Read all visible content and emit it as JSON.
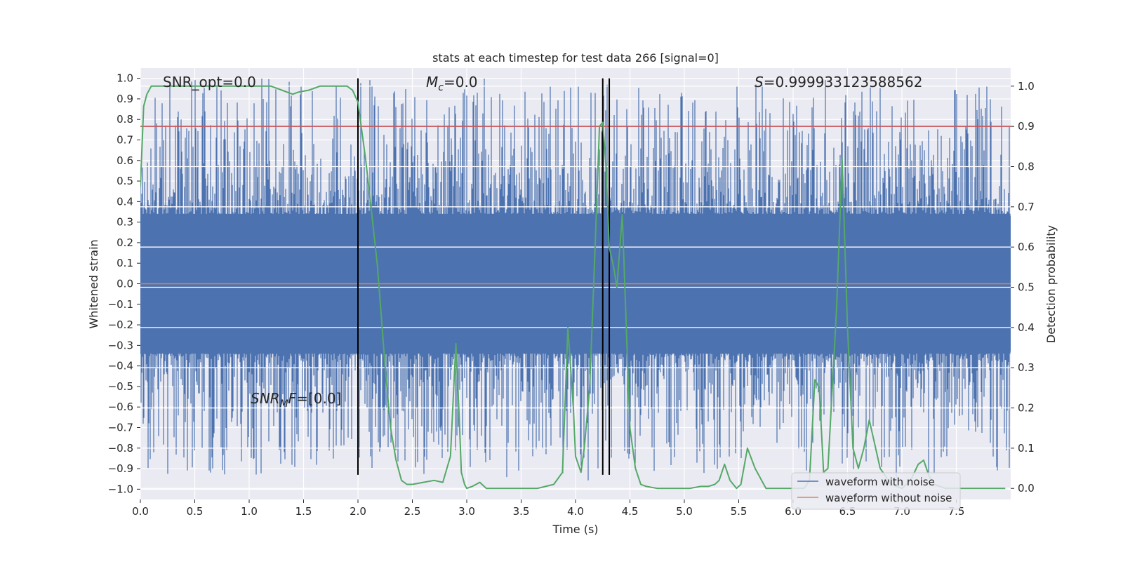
{
  "chart_data": {
    "type": "line",
    "title": "stats at each timestep for test data 266 [signal=0]",
    "xlabel": "Time (s)",
    "ylabel": "Whitened strain",
    "y2label": "Detection probability",
    "xlim": [
      0.0,
      8.0
    ],
    "ylim": [
      -1.05,
      1.05
    ],
    "y2lim": [
      -0.0275,
      1.045
    ],
    "x_ticks": [
      0.0,
      0.5,
      1.0,
      1.5,
      2.0,
      2.5,
      3.0,
      3.5,
      4.0,
      4.5,
      5.0,
      5.5,
      6.0,
      6.5,
      7.0,
      7.5
    ],
    "x_tick_labels": [
      "0.0",
      "0.5",
      "1.0",
      "1.5",
      "2.0",
      "2.5",
      "3.0",
      "3.5",
      "4.0",
      "4.5",
      "5.0",
      "5.5",
      "6.0",
      "6.5",
      "7.0",
      "7.5"
    ],
    "y_ticks": [
      1.0,
      0.9,
      0.8,
      0.7,
      0.6,
      0.5,
      0.4,
      0.3,
      0.2,
      0.1,
      0.0,
      -0.1,
      -0.2,
      -0.3,
      -0.4,
      -0.5,
      -0.6,
      -0.7,
      -0.8,
      -0.9,
      -1.0
    ],
    "y_tick_labels": [
      "1.0",
      "0.9",
      "0.8",
      "0.7",
      "0.6",
      "0.5",
      "0.4",
      "0.3",
      "0.2",
      "0.1",
      "0.0",
      "−0.1",
      "−0.2",
      "−0.3",
      "−0.4",
      "−0.5",
      "−0.6",
      "−0.7",
      "−0.8",
      "−0.9",
      "−1.0"
    ],
    "y2_ticks": [
      1.0,
      0.9,
      0.8,
      0.7,
      0.6,
      0.5,
      0.4,
      0.3,
      0.2,
      0.1,
      0.0
    ],
    "y2_tick_labels": [
      "1.0",
      "0.9",
      "0.8",
      "0.7",
      "0.6",
      "0.5",
      "0.4",
      "0.3",
      "0.2",
      "0.1",
      "0.0"
    ],
    "grid": true,
    "legend_position": "bottom-right",
    "annotations": {
      "snr_opt": "SNR_opt=0.0",
      "mc_symbol": "M",
      "mc_sub": "c",
      "mc_value": "=0.0",
      "s_symbol": "S",
      "s_value": "=0.999933123588562",
      "snr_mf_symbol": "SNR",
      "snr_mf_sub": "M",
      "snr_mf_tail": "F",
      "snr_mf_value": "=[0.0]"
    },
    "series": [
      {
        "name": "waveform with noise",
        "color": "#4c72b0",
        "approx_envelope": {
          "core_amplitude": 0.34,
          "peak_max": 1.0,
          "peak_min": -0.96
        }
      },
      {
        "name": "waveform without noise",
        "color": "#dd8452",
        "values_constant": 0.0
      },
      {
        "name": "detection probability",
        "axis": "right",
        "color": "#55a868",
        "x": [
          0.0,
          0.03,
          0.06,
          0.1,
          0.15,
          0.2,
          0.3,
          0.5,
          0.8,
          1.0,
          1.2,
          1.3,
          1.4,
          1.45,
          1.55,
          1.65,
          1.75,
          1.85,
          1.9,
          1.95,
          2.0,
          2.03,
          2.07,
          2.12,
          2.18,
          2.25,
          2.3,
          2.35,
          2.4,
          2.45,
          2.5,
          2.6,
          2.7,
          2.78,
          2.85,
          2.9,
          2.93,
          2.95,
          2.98,
          3.0,
          3.05,
          3.12,
          3.18,
          3.25,
          3.35,
          3.5,
          3.65,
          3.8,
          3.88,
          3.93,
          3.98,
          4.0,
          4.05,
          4.08,
          4.13,
          4.18,
          4.22,
          4.25,
          4.28,
          4.31,
          4.35,
          4.38,
          4.43,
          4.46,
          4.5,
          4.55,
          4.6,
          4.65,
          4.75,
          4.95,
          5.05,
          5.15,
          5.22,
          5.28,
          5.32,
          5.37,
          5.42,
          5.48,
          5.52,
          5.58,
          5.65,
          5.75,
          5.9,
          6.0,
          6.1,
          6.15,
          6.2,
          6.24,
          6.28,
          6.32,
          6.4,
          6.45,
          6.5,
          6.55,
          6.6,
          6.65,
          6.7,
          6.75,
          6.8,
          6.9,
          7.0,
          7.08,
          7.15,
          7.2,
          7.25,
          7.3,
          7.4,
          7.6,
          7.8,
          7.95
        ],
        "y": [
          0.75,
          0.95,
          0.98,
          1.0,
          1.0,
          1.0,
          1.0,
          1.0,
          1.0,
          1.0,
          1.0,
          0.99,
          0.98,
          0.985,
          0.99,
          1.0,
          1.0,
          1.0,
          1.0,
          0.99,
          0.96,
          0.9,
          0.82,
          0.7,
          0.55,
          0.3,
          0.15,
          0.07,
          0.02,
          0.01,
          0.01,
          0.015,
          0.02,
          0.015,
          0.08,
          0.36,
          0.18,
          0.04,
          0.01,
          0.0,
          0.005,
          0.015,
          0.0,
          0.0,
          0.0,
          0.0,
          0.0,
          0.01,
          0.04,
          0.4,
          0.2,
          0.08,
          0.04,
          0.1,
          0.25,
          0.6,
          0.9,
          0.91,
          0.8,
          0.6,
          0.55,
          0.5,
          0.68,
          0.45,
          0.15,
          0.05,
          0.01,
          0.005,
          0.0,
          0.0,
          0.0,
          0.005,
          0.005,
          0.01,
          0.02,
          0.06,
          0.02,
          0.0,
          0.01,
          0.1,
          0.05,
          0.0,
          0.0,
          0.0,
          0.0,
          0.02,
          0.27,
          0.25,
          0.04,
          0.05,
          0.45,
          0.82,
          0.4,
          0.1,
          0.05,
          0.1,
          0.17,
          0.11,
          0.05,
          0.01,
          0.0,
          0.02,
          0.06,
          0.07,
          0.03,
          0.01,
          0.0,
          0.0,
          0.0,
          0.0
        ]
      }
    ],
    "hlines": [
      {
        "y2": 0.9,
        "color": "#c44e52"
      }
    ],
    "vlines": [
      2.0,
      4.25,
      4.31
    ]
  }
}
